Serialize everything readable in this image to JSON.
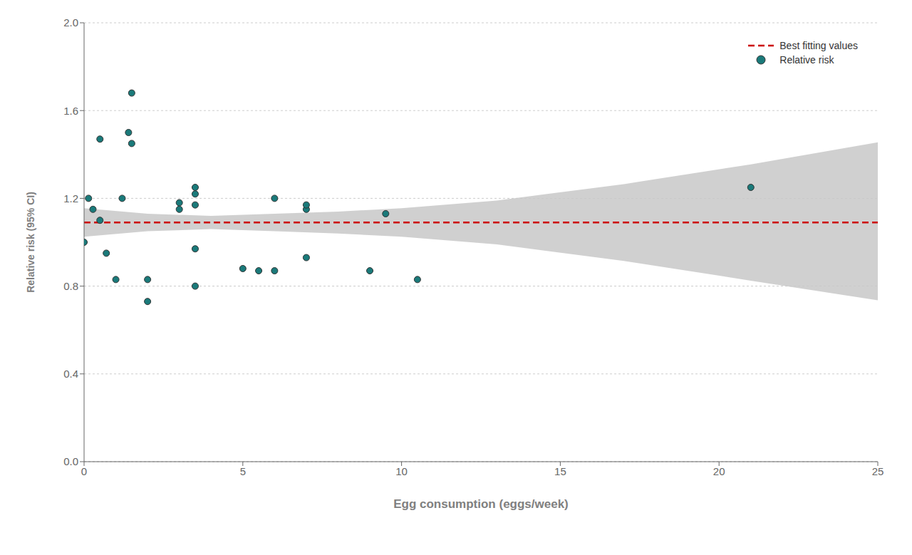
{
  "chart_data": {
    "type": "scatter",
    "xlabel": "Egg consumption (eggs/week)",
    "ylabel": "Relative risk (95% CI)",
    "xlim": [
      0,
      25
    ],
    "ylim": [
      0,
      2.0
    ],
    "xticks": [
      0,
      5,
      10,
      15,
      20,
      25
    ],
    "yticks": [
      {
        "value": 0,
        "label": "0.0"
      },
      0.4,
      0.8,
      1.2,
      1.6,
      {
        "value": 2.0,
        "label": "2.0"
      }
    ],
    "grid": "y",
    "legend": "upper right",
    "series": [
      {
        "type": "band",
        "x": [
          0,
          2,
          4,
          6,
          8,
          10,
          13,
          17,
          21,
          25
        ],
        "upper": [
          1.155,
          1.13,
          1.12,
          1.13,
          1.14,
          1.155,
          1.19,
          1.265,
          1.355,
          1.455
        ],
        "lower": [
          1.025,
          1.05,
          1.06,
          1.05,
          1.04,
          1.025,
          0.99,
          0.915,
          0.825,
          0.735
        ],
        "color": "#c8c8c8"
      },
      {
        "name": "Best fitting values",
        "type": "line",
        "x": [
          0,
          25
        ],
        "values": [
          1.09,
          1.09
        ],
        "color": "#cc0000",
        "line_style": "dashed"
      },
      {
        "name": "Relative risk",
        "type": "scatter",
        "x": [
          0.0,
          0.14,
          0.28,
          0.5,
          0.7,
          1.0,
          1.2,
          1.5,
          2.0,
          2.0,
          3.0,
          3.0,
          3.5,
          3.5,
          3.5,
          3.5,
          5.0,
          5.5,
          6.0,
          6.0,
          7.0,
          7.0,
          7.0,
          9.0,
          9.5,
          10.5,
          21.0,
          0.5,
          1.4,
          3.5,
          1.5
        ],
        "values": [
          1.0,
          1.2,
          1.15,
          1.1,
          0.95,
          0.83,
          1.2,
          1.45,
          0.73,
          0.83,
          1.18,
          1.15,
          1.22,
          1.17,
          0.97,
          0.8,
          0.88,
          0.87,
          1.2,
          0.87,
          1.15,
          1.17,
          0.93,
          0.87,
          1.13,
          0.83,
          1.25,
          1.47,
          1.5,
          1.25,
          1.68
        ],
        "color": "#1a7a7a",
        "marker": "circle"
      }
    ]
  }
}
